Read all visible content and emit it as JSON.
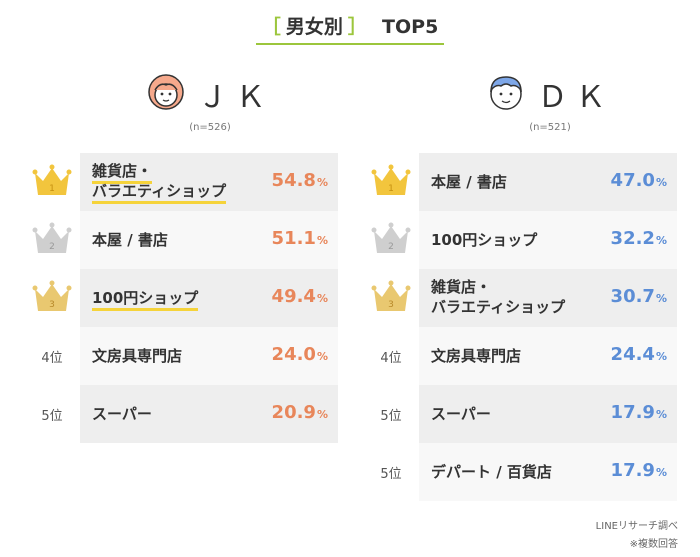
{
  "header": {
    "bracket_open": "［",
    "title": "男女別",
    "bracket_close": "］",
    "suffix": "TOP5"
  },
  "groups": [
    {
      "id": "jk",
      "name": "ＪＫ",
      "n": "(n=526)",
      "accent": "#e8865a",
      "rows": [
        {
          "rank_type": "gold",
          "rank_label": "1",
          "lines": [
            "雑貨店・",
            "バラエティショップ"
          ],
          "value": 54.8,
          "pct": "54.8",
          "unit": "%",
          "highlight": true
        },
        {
          "rank_type": "silver",
          "rank_label": "2",
          "lines": [
            "本屋 / 書店"
          ],
          "value": 51.1,
          "pct": "51.1",
          "unit": "%",
          "highlight": false
        },
        {
          "rank_type": "bronze",
          "rank_label": "3",
          "lines": [
            "100円ショップ"
          ],
          "value": 49.4,
          "pct": "49.4",
          "unit": "%",
          "highlight": true
        },
        {
          "rank_type": "text",
          "rank_label": "4位",
          "lines": [
            "文房具専門店"
          ],
          "value": 24.0,
          "pct": "24.0",
          "unit": "%",
          "highlight": false
        },
        {
          "rank_type": "text",
          "rank_label": "5位",
          "lines": [
            "スーパー"
          ],
          "value": 20.9,
          "pct": "20.9",
          "unit": "%",
          "highlight": false
        }
      ]
    },
    {
      "id": "dk",
      "name": "ＤＫ",
      "n": "(n=521)",
      "accent": "#5b8dd6",
      "rows": [
        {
          "rank_type": "gold",
          "rank_label": "1",
          "lines": [
            "本屋 / 書店"
          ],
          "value": 47.0,
          "pct": "47.0",
          "unit": "%",
          "highlight": false
        },
        {
          "rank_type": "silver",
          "rank_label": "2",
          "lines": [
            "100円ショップ"
          ],
          "value": 32.2,
          "pct": "32.2",
          "unit": "%",
          "highlight": false
        },
        {
          "rank_type": "bronze",
          "rank_label": "3",
          "lines": [
            "雑貨店・",
            "バラエティショップ"
          ],
          "value": 30.7,
          "pct": "30.7",
          "unit": "%",
          "highlight": false
        },
        {
          "rank_type": "text",
          "rank_label": "4位",
          "lines": [
            "文房具専門店"
          ],
          "value": 24.4,
          "pct": "24.4",
          "unit": "%",
          "highlight": false
        },
        {
          "rank_type": "text",
          "rank_label": "5位",
          "lines": [
            "スーパー"
          ],
          "value": 17.9,
          "pct": "17.9",
          "unit": "%",
          "highlight": false
        },
        {
          "rank_type": "text",
          "rank_label": "5位",
          "lines": [
            "デパート / 百貨店"
          ],
          "value": 17.9,
          "pct": "17.9",
          "unit": "%",
          "highlight": false
        }
      ]
    }
  ],
  "footer": {
    "source": "LINEリサーチ調べ",
    "note": "※複数回答"
  },
  "chart_data": {
    "type": "table",
    "title": "［男女別］TOP5",
    "series": [
      {
        "name": "ＪＫ",
        "n": "(n=526)",
        "categories": [
          "雑貨店・バラエティショップ",
          "本屋 / 書店",
          "100円ショップ",
          "文房具専門店",
          "スーパー"
        ],
        "values": [
          54.8,
          51.1,
          49.4,
          24.0,
          20.9
        ]
      },
      {
        "name": "ＤＫ",
        "n": "(n=521)",
        "categories": [
          "本屋 / 書店",
          "100円ショップ",
          "雑貨店・バラエティショップ",
          "文房具専門店",
          "スーパー",
          "デパート / 百貨店"
        ],
        "values": [
          47.0,
          32.2,
          30.7,
          24.4,
          17.9,
          17.9
        ]
      }
    ],
    "unit": "%"
  }
}
